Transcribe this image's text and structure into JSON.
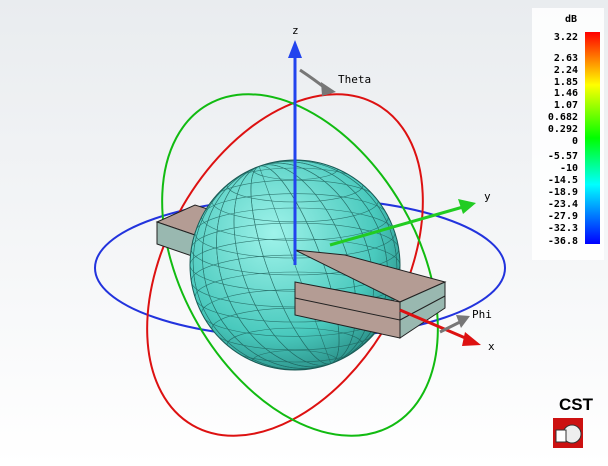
{
  "axes": {
    "z": "z",
    "y": "y",
    "x": "x",
    "theta": "Theta",
    "phi": "Phi"
  },
  "colorbar": {
    "unit": "dB",
    "labels": [
      "3.22",
      "2.63",
      "2.24",
      "1.85",
      "1.46",
      "1.07",
      "0.682",
      "0.292",
      "0",
      "-5.57",
      "-10",
      "-14.5",
      "-18.9",
      "-23.4",
      "-27.9",
      "-32.3",
      "-36.8"
    ]
  },
  "logo": "CST"
}
